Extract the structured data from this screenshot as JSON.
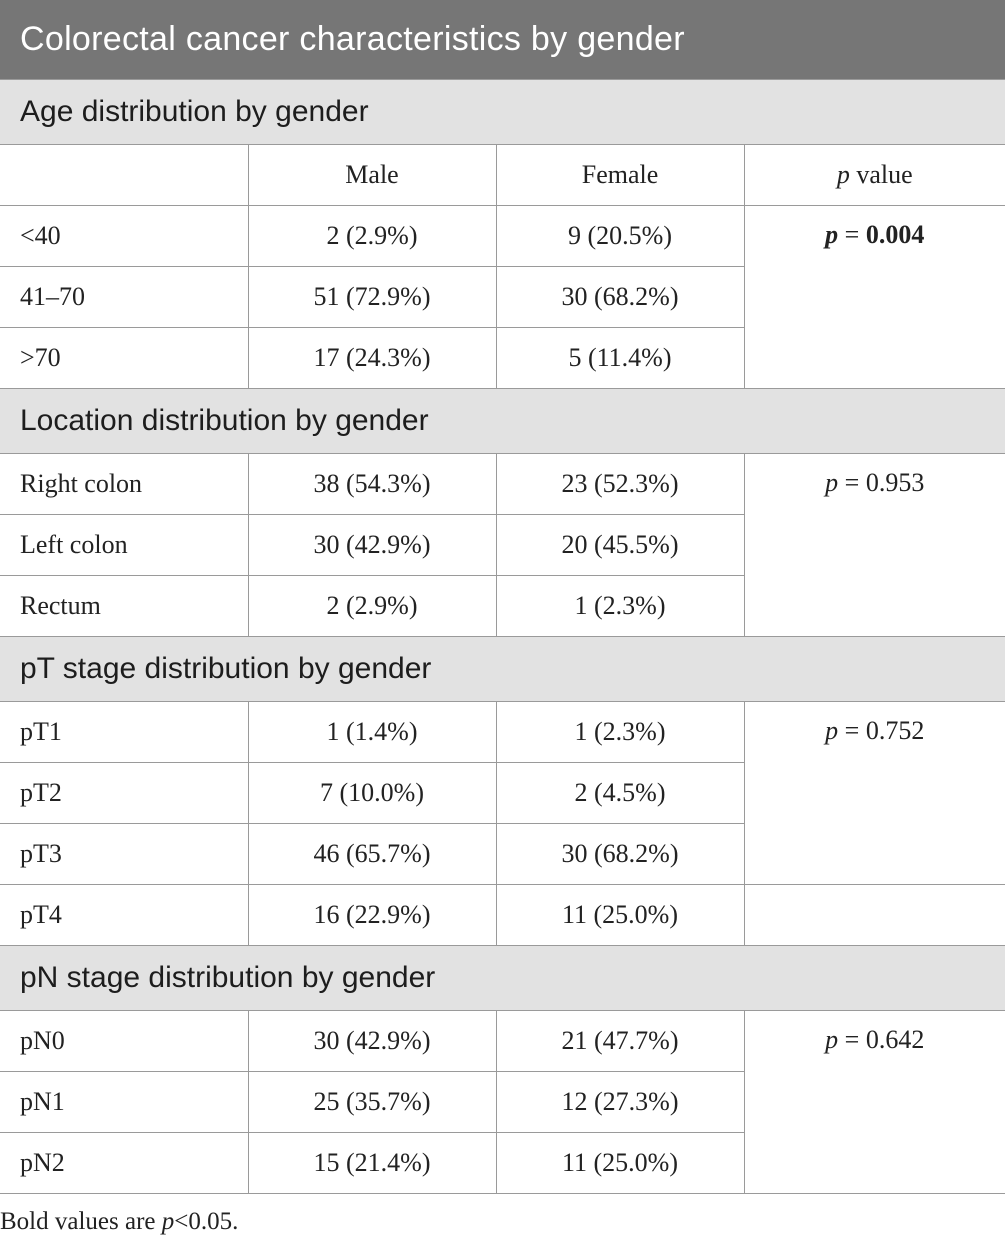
{
  "title": "Colorectal cancer characteristics by gender",
  "columns": {
    "blank": "",
    "male": "Male",
    "female": "Female",
    "p_italic": "p",
    "p_rest": " value"
  },
  "sections": [
    {
      "heading": "Age distribution by gender",
      "rows": [
        {
          "label": "<40",
          "male": "2 (2.9%)",
          "female": "9 (20.5%)"
        },
        {
          "label": "41–70",
          "male": "51 (72.9%)",
          "female": "30 (68.2%)"
        },
        {
          "label": ">70",
          "male": "17 (24.3%)",
          "female": "5 (11.4%)"
        }
      ],
      "p_label": "p",
      "p_eq": " = ",
      "p_value": "0.004",
      "p_bold": true
    },
    {
      "heading": "Location distribution by gender",
      "rows": [
        {
          "label": "Right colon",
          "male": "38 (54.3%)",
          "female": "23 (52.3%)"
        },
        {
          "label": "Left colon",
          "male": "30 (42.9%)",
          "female": "20 (45.5%)"
        },
        {
          "label": "Rectum",
          "male": "2 (2.9%)",
          "female": "1 (2.3%)"
        }
      ],
      "p_label": "p",
      "p_eq": " = ",
      "p_value": "0.953",
      "p_bold": false
    },
    {
      "heading": "pT stage distribution by gender",
      "rows": [
        {
          "label": "pT1",
          "male": "1 (1.4%)",
          "female": "1 (2.3%)"
        },
        {
          "label": "pT2",
          "male": "7 (10.0%)",
          "female": "2 (4.5%)"
        },
        {
          "label": "pT3",
          "male": "46 (65.7%)",
          "female": "30 (68.2%)"
        },
        {
          "label": "pT4",
          "male": "16 (22.9%)",
          "female": "11 (25.0%)"
        }
      ],
      "p_label": "p",
      "p_eq": " = ",
      "p_value": "0.752",
      "p_bold": false
    },
    {
      "heading": "pN stage distribution by gender",
      "rows": [
        {
          "label": "pN0",
          "male": "30 (42.9%)",
          "female": "21 (47.7%)"
        },
        {
          "label": "pN1",
          "male": "25 (35.7%)",
          "female": "12 (27.3%)"
        },
        {
          "label": "pN2",
          "male": "15 (21.4%)",
          "female": "11 (25.0%)"
        }
      ],
      "p_label": "p",
      "p_eq": " = ",
      "p_value": "0.642",
      "p_bold": false
    }
  ],
  "footnote": {
    "prefix": "Bold values are ",
    "p_italic": "p",
    "suffix": "<0.05."
  },
  "colors": {
    "title_bg": "#767676",
    "section_bg": "#e2e2e2",
    "border": "#9a9a9a"
  }
}
